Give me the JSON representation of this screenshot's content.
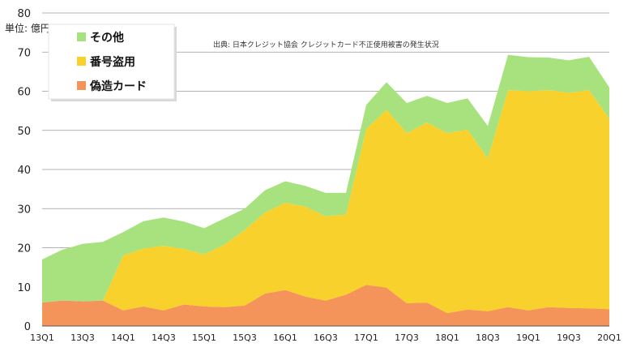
{
  "chart_data": {
    "type": "area",
    "stacked": true,
    "unit_label": "単位: 億円",
    "source": "出典: 日本クレジット協会 クレジットカード不正使用被害の発生状況",
    "ylim": [
      0,
      80
    ],
    "yticks": [
      0,
      10,
      20,
      30,
      40,
      50,
      60,
      70,
      80
    ],
    "grid": true,
    "legend_position": "top-left",
    "x": [
      "13Q1",
      "13Q2",
      "13Q3",
      "13Q4",
      "14Q1",
      "14Q2",
      "14Q3",
      "14Q4",
      "15Q1",
      "15Q2",
      "15Q3",
      "15Q4",
      "16Q1",
      "16Q2",
      "16Q3",
      "16Q4",
      "17Q1",
      "17Q2",
      "17Q3",
      "17Q4",
      "18Q1",
      "18Q2",
      "18Q3",
      "18Q4",
      "19Q1",
      "19Q2",
      "19Q3",
      "19Q4",
      "20Q1"
    ],
    "xtick_labels": [
      "13Q1",
      "",
      "13Q3",
      "",
      "14Q1",
      "",
      "14Q3",
      "",
      "15Q1",
      "",
      "15Q3",
      "",
      "16Q1",
      "",
      "16Q3",
      "",
      "17Q1",
      "",
      "17Q3",
      "",
      "18Q1",
      "",
      "18Q3",
      "",
      "19Q1",
      "",
      "19Q3",
      "",
      "20Q1"
    ],
    "series": [
      {
        "name": "偽造カード",
        "color": "#f4935a",
        "values": [
          6.0,
          6.5,
          6.3,
          6.5,
          4.0,
          5.0,
          4.0,
          5.5,
          5.0,
          4.8,
          5.2,
          8.3,
          9.2,
          7.5,
          6.5,
          8.0,
          10.5,
          9.8,
          5.8,
          6.0,
          3.3,
          4.2,
          3.8,
          4.8,
          4.0,
          4.8,
          4.6,
          4.5,
          4.3
        ]
      },
      {
        "name": "番号盗用",
        "color": "#f9d12c",
        "values": [
          0,
          0,
          0,
          0,
          14.0,
          14.8,
          16.5,
          14.2,
          13.3,
          16.0,
          19.3,
          20.7,
          22.3,
          23.0,
          21.5,
          20.5,
          39.8,
          45.5,
          43.5,
          46.0,
          46.0,
          46.0,
          39.0,
          55.5,
          56.0,
          55.5,
          55.0,
          55.8,
          48.7
        ]
      },
      {
        "name": "その他",
        "color": "#a8e27e",
        "values": [
          11.0,
          13.0,
          14.7,
          15.0,
          6.0,
          7.0,
          7.2,
          7.0,
          6.7,
          6.7,
          5.5,
          5.7,
          5.5,
          5.3,
          6.0,
          5.5,
          6.2,
          7.0,
          7.7,
          6.8,
          7.7,
          8.0,
          8.3,
          9.0,
          8.7,
          8.3,
          8.3,
          8.5,
          8.0
        ]
      }
    ],
    "legend_order": [
      "その他",
      "番号盗用",
      "偽造カード"
    ]
  }
}
